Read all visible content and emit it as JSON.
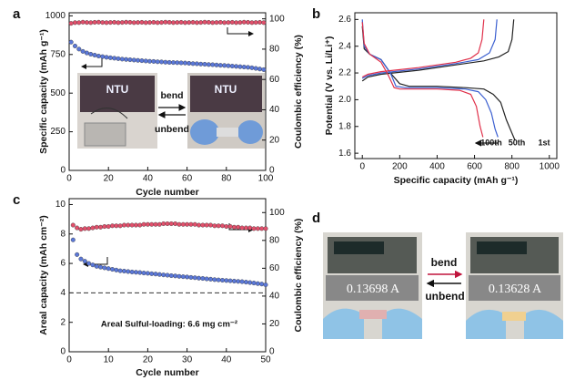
{
  "chart_data": [
    {
      "type": "scatter",
      "label": "a",
      "xlabel": "Cycle number",
      "ylabel": "Specific capacity (mAh g⁻¹)",
      "y2label": "Coulombic efficiency (%)",
      "xlim": [
        0,
        100
      ],
      "xticks": [
        0,
        20,
        40,
        60,
        80,
        100
      ],
      "ylim": [
        0,
        1020
      ],
      "yticks": [
        0,
        250,
        500,
        750,
        1000
      ],
      "y2lim": [
        0,
        104
      ],
      "y2ticks": [
        0,
        20,
        40,
        60,
        80,
        100
      ],
      "annotations": [
        "bend",
        "unbend",
        "NTU",
        "NTU"
      ],
      "x": [
        1,
        3,
        5,
        7,
        9,
        11,
        13,
        15,
        17,
        19,
        21,
        23,
        25,
        27,
        29,
        31,
        33,
        35,
        37,
        39,
        41,
        43,
        45,
        47,
        49,
        51,
        53,
        55,
        57,
        59,
        61,
        63,
        65,
        67,
        69,
        71,
        73,
        75,
        77,
        79,
        81,
        83,
        85,
        87,
        89,
        91,
        93,
        95,
        97,
        99
      ],
      "series": [
        {
          "color": "#5b78d8",
          "values": [
            830,
            805,
            785,
            770,
            760,
            752,
            746,
            740,
            736,
            732,
            729,
            726,
            723,
            720,
            718,
            716,
            714,
            712,
            710,
            708,
            706,
            705,
            703,
            702,
            700,
            699,
            698,
            697,
            696,
            695,
            693,
            691,
            690,
            688,
            687,
            685,
            684,
            682,
            680,
            679,
            677,
            675,
            673,
            671,
            669,
            667,
            664,
            660,
            656,
            652
          ]
        },
        {
          "color": "#e2506c",
          "axis": "y2",
          "values": [
            97,
            97.5,
            97.5,
            97.8,
            97.6,
            97.5,
            97.7,
            97.8,
            97.6,
            97.5,
            97.6,
            97.7,
            97.5,
            97.6,
            97.8,
            97.7,
            97.5,
            97.6,
            97.7,
            97.5,
            97.6,
            97.7,
            97.5,
            97.6,
            97.8,
            97.7,
            97.5,
            97.6,
            97.7,
            97.5,
            97.6,
            97.7,
            97.5,
            97.6,
            97.8,
            97.7,
            97.5,
            97.6,
            97.7,
            97.5,
            97.6,
            97.7,
            97.5,
            97.6,
            97.8,
            97.7,
            97.5,
            97.6,
            97.7,
            97.5
          ]
        }
      ]
    },
    {
      "type": "line",
      "label": "b",
      "xlabel": "Specific capacity (mAh g⁻¹)",
      "ylabel": "Potential (V vs. Li/Li⁺)",
      "xlim": [
        -40,
        1040
      ],
      "xticks": [
        0,
        200,
        400,
        600,
        800,
        1000
      ],
      "ylim": [
        1.56,
        2.65
      ],
      "yticks": [
        1.6,
        1.8,
        {
          "value": 2,
          "label": "2.0"
        },
        2.2,
        2.4,
        2.6
      ],
      "series": [
        {
          "name": "1st",
          "color": "#222222",
          "x": [
            0,
            10,
            40,
            100,
            150,
            200,
            250,
            400,
            550,
            650,
            700,
            740,
            770,
            800,
            815,
            null,
            0,
            30,
            100,
            300,
            500,
            650,
            730,
            780,
            800,
            810
          ],
          "values": [
            2.55,
            2.38,
            2.34,
            2.3,
            2.2,
            2.12,
            2.1,
            2.1,
            2.09,
            2.08,
            2.04,
            1.98,
            1.85,
            1.75,
            1.7,
            null,
            2.14,
            2.17,
            2.19,
            2.22,
            2.26,
            2.29,
            2.32,
            2.36,
            2.45,
            2.6
          ]
        },
        {
          "name": "50th",
          "color": "#3b5fd0",
          "x": [
            0,
            10,
            40,
            100,
            150,
            180,
            230,
            400,
            550,
            620,
            660,
            690,
            710,
            725,
            null,
            0,
            30,
            100,
            300,
            500,
            620,
            680,
            710,
            720
          ],
          "values": [
            2.6,
            2.4,
            2.34,
            2.3,
            2.2,
            2.1,
            2.09,
            2.09,
            2.08,
            2.06,
            2.0,
            1.9,
            1.78,
            1.72,
            null,
            2.16,
            2.18,
            2.2,
            2.23,
            2.27,
            2.3,
            2.35,
            2.45,
            2.6
          ]
        },
        {
          "name": "100th",
          "color": "#e0304a",
          "x": [
            0,
            10,
            40,
            100,
            140,
            170,
            200,
            400,
            520,
            580,
            610,
            630,
            645,
            null,
            0,
            30,
            100,
            300,
            500,
            580,
            620,
            640,
            650
          ],
          "values": [
            2.58,
            2.42,
            2.34,
            2.28,
            2.18,
            2.09,
            2.08,
            2.08,
            2.07,
            2.04,
            1.95,
            1.8,
            1.72,
            null,
            2.17,
            2.19,
            2.21,
            2.24,
            2.28,
            2.31,
            2.35,
            2.45,
            2.6
          ]
        }
      ]
    },
    {
      "type": "scatter",
      "label": "c",
      "xlabel": "Cycle number",
      "ylabel": "Areal capacity (mAh cm⁻²)",
      "y2label": "Coulombic efficiency (%)",
      "xlim": [
        0,
        50
      ],
      "xticks": [
        0,
        10,
        20,
        30,
        40,
        50
      ],
      "ylim": [
        0,
        10.4
      ],
      "yticks": [
        0,
        2,
        4,
        6,
        8,
        10
      ],
      "y2lim": [
        0,
        110
      ],
      "y2ticks": [
        0,
        20,
        40,
        60,
        80,
        100
      ],
      "hline": 4,
      "annotations": [
        "Areal Sulful-loading: 6.6 mg cm⁻²"
      ],
      "x": [
        1,
        2,
        3,
        4,
        5,
        6,
        7,
        8,
        9,
        10,
        11,
        12,
        13,
        14,
        15,
        16,
        17,
        18,
        19,
        20,
        21,
        22,
        23,
        24,
        25,
        26,
        27,
        28,
        29,
        30,
        31,
        32,
        33,
        34,
        35,
        36,
        37,
        38,
        39,
        40,
        41,
        42,
        43,
        44,
        45,
        46,
        47,
        48,
        49,
        50
      ],
      "series": [
        {
          "color": "#5b78d8",
          "values": [
            7.6,
            6.6,
            6.3,
            6.15,
            6.0,
            5.9,
            5.8,
            5.75,
            5.7,
            5.65,
            5.6,
            5.55,
            5.5,
            5.48,
            5.45,
            5.42,
            5.4,
            5.38,
            5.35,
            5.33,
            5.3,
            5.28,
            5.25,
            5.22,
            5.2,
            5.17,
            5.15,
            5.12,
            5.1,
            5.08,
            5.05,
            5.03,
            5.0,
            4.98,
            4.95,
            4.93,
            4.9,
            4.88,
            4.86,
            4.84,
            4.82,
            4.8,
            4.78,
            4.76,
            4.73,
            4.7,
            4.67,
            4.63,
            4.6,
            4.55
          ]
        },
        {
          "color": "#e2506c",
          "axis": "y2",
          "values": [
            91,
            89,
            88,
            88.5,
            88.5,
            89,
            89.5,
            89.5,
            90,
            90,
            90.5,
            90.5,
            90.5,
            91,
            91,
            91,
            91,
            91,
            91.5,
            91.5,
            91.5,
            91.5,
            91.5,
            92,
            92,
            92,
            92,
            91.5,
            91.5,
            91.5,
            91.5,
            91.5,
            91,
            91,
            91,
            91,
            90.5,
            90.5,
            90.5,
            90,
            90,
            89.5,
            89.5,
            89,
            89,
            89,
            88.5,
            88.5,
            88.5,
            88.5
          ]
        }
      ]
    }
  ],
  "panel_d": {
    "label": "d",
    "bend": "bend",
    "unbend": "unbend",
    "readings": [
      "0.13698 A",
      "0.13628 A"
    ]
  }
}
